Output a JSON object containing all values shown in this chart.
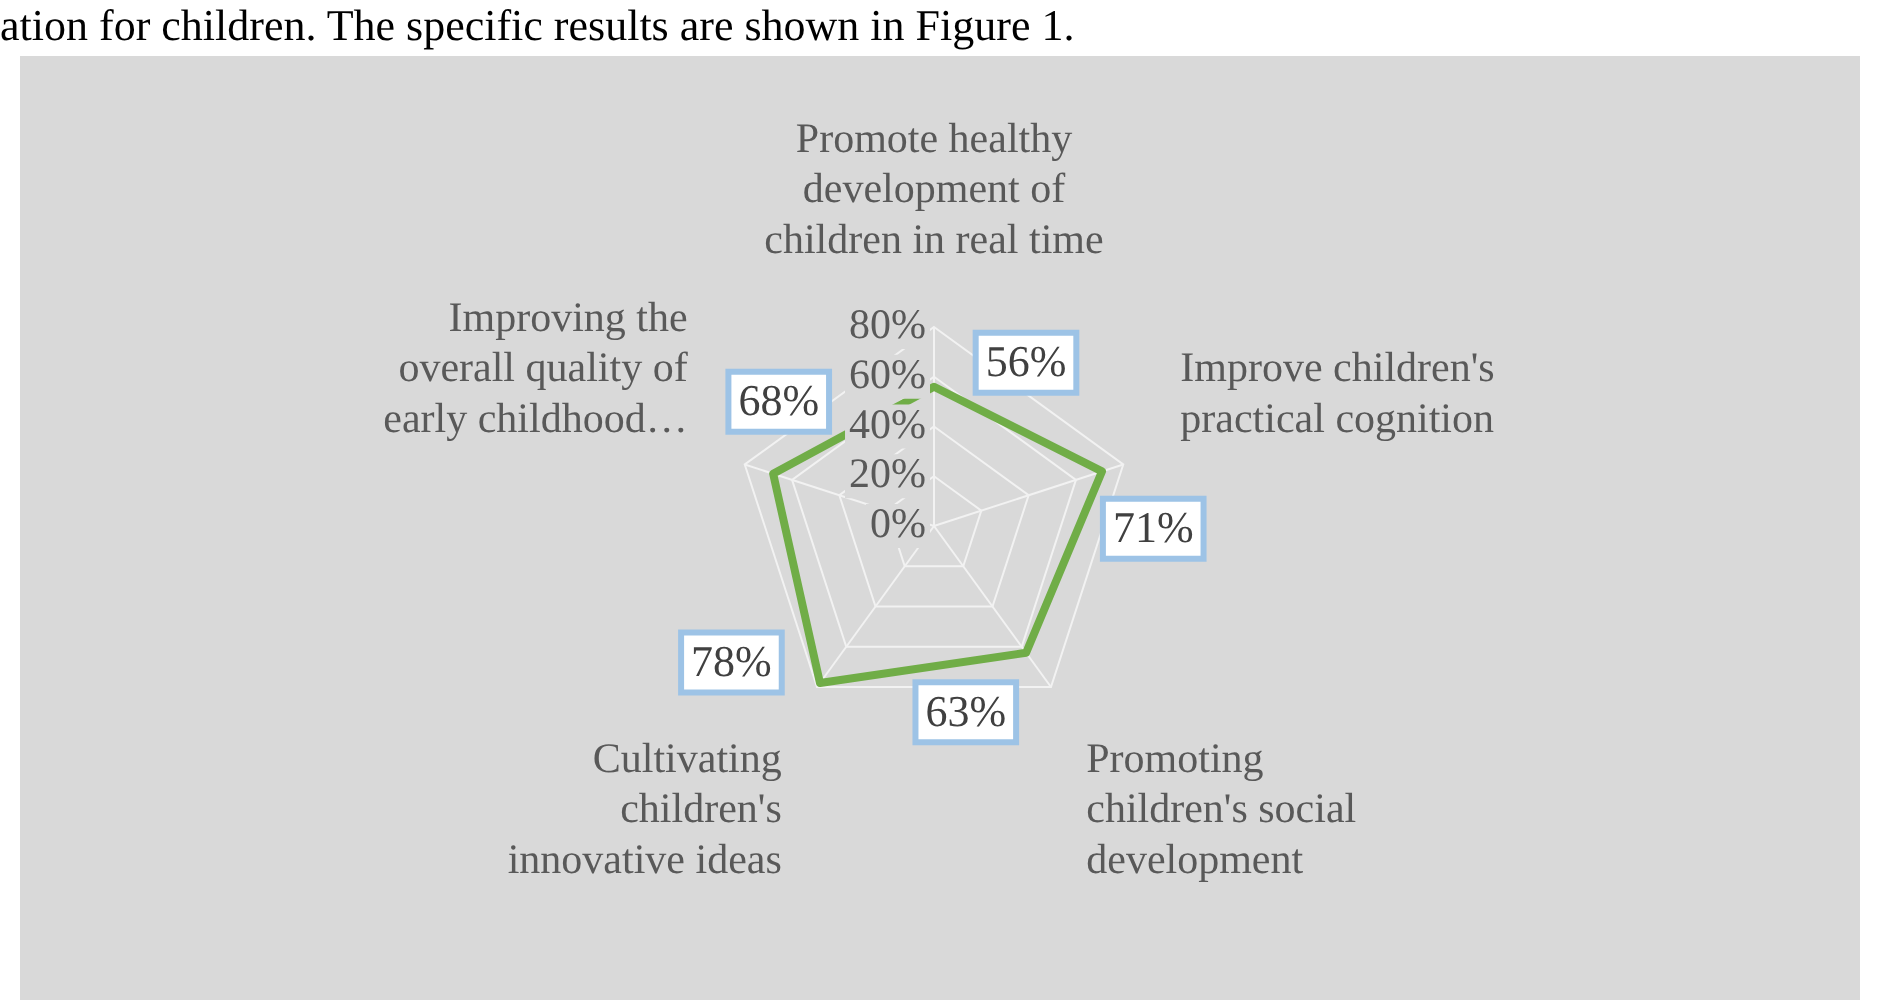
{
  "chart_data": {
    "type": "radar",
    "annotations": [
      "ation for children. The specific results are shown in Figure 1."
    ],
    "categories": [
      "Promote healthy\ndevelopment of\nchildren in real time",
      "Improve children's\npractical cognition",
      "Promoting\nchildren's social\ndevelopment",
      "Cultivating\nchildren's\ninnovative ideas",
      "Improving the\noverall quality of\nearly childhood…"
    ],
    "series": [
      {
        "color": "#70ad47",
        "values": [
          56,
          71,
          63,
          78,
          68
        ],
        "value_labels": [
          "56%",
          "71%",
          "63%",
          "78%",
          "68%"
        ]
      }
    ],
    "ylim": [
      0,
      80
    ],
    "yticks": [
      {
        "value": 0,
        "label": "0%"
      },
      {
        "value": 20,
        "label": "20%"
      },
      {
        "value": 40,
        "label": "40%"
      },
      {
        "value": 60,
        "label": "60%"
      },
      {
        "value": 80,
        "label": "80%"
      }
    ],
    "grid": true,
    "legend": false,
    "marker": "none",
    "line_style": "solid"
  }
}
